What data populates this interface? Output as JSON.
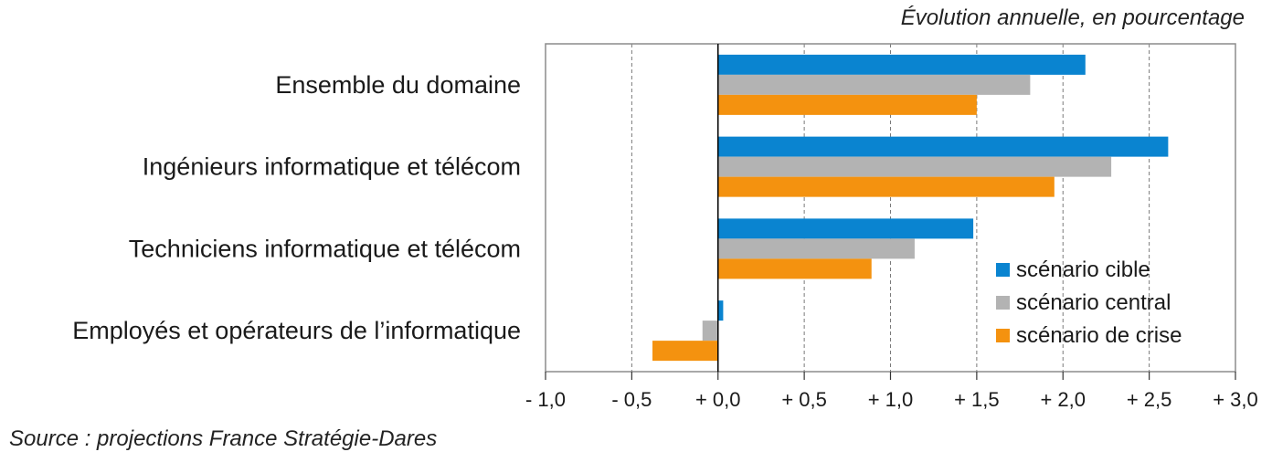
{
  "unit_note": "Évolution annuelle, en pourcentage",
  "source": "Source : projections France Stratégie-Dares",
  "colors": {
    "cible": "#0a84d0",
    "central": "#b3b3b3",
    "crise": "#f4920f",
    "frame": "#8c8c8c",
    "grid": "#7a7a7a"
  },
  "chart_data": {
    "type": "bar",
    "orientation": "horizontal",
    "categories": [
      "Ensemble du domaine",
      "Ingénieurs informatique et télécom",
      "Techniciens informatique et télécom",
      "Employés et opérateurs de l’informatique"
    ],
    "series": [
      {
        "name": "scénario cible",
        "values": [
          2.13,
          2.61,
          1.48,
          0.03
        ]
      },
      {
        "name": "scénario central",
        "values": [
          1.81,
          2.28,
          1.14,
          -0.09
        ]
      },
      {
        "name": "scénario de crise",
        "values": [
          1.5,
          1.95,
          0.89,
          -0.38
        ]
      }
    ],
    "xlim": [
      -1.0,
      3.0
    ],
    "xticks": [
      -1.0,
      -0.5,
      0.0,
      0.5,
      1.0,
      1.5,
      2.0,
      2.5,
      3.0
    ],
    "xtick_labels": [
      "- 1,0",
      "- 0,5",
      "+ 0,0",
      "+ 0,5",
      "+ 1,0",
      "+ 1,5",
      "+ 2,0",
      "+ 2,5",
      "+ 3,0"
    ],
    "grid": "vertical dashed",
    "legend": "bottom-right"
  }
}
